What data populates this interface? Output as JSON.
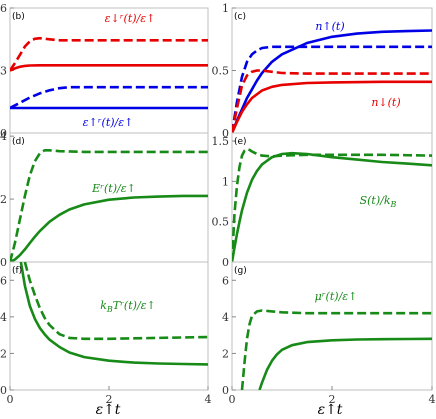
{
  "figure": {
    "xlabel": "ε↑t"
  },
  "chart_data": [
    {
      "type": "line",
      "panel_label": "(b)",
      "xlim": [
        0,
        4
      ],
      "ylim": [
        0,
        6
      ],
      "xticks": [],
      "yticks": [
        0,
        3,
        6
      ],
      "series": [
        {
          "color": "#e60000",
          "dash": true,
          "x": [
            0,
            0.1,
            0.2,
            0.3,
            0.4,
            0.5,
            0.6,
            0.8,
            1.0,
            1.5,
            2.0,
            3.0,
            4.0
          ],
          "y": [
            3.0,
            3.35,
            3.75,
            4.15,
            4.4,
            4.52,
            4.55,
            4.5,
            4.45,
            4.45,
            4.45,
            4.45,
            4.45
          ]
        },
        {
          "color": "#e60000",
          "dash": false,
          "x": [
            0,
            0.1,
            0.2,
            0.3,
            0.4,
            0.6,
            1.0,
            2.0,
            3.0,
            4.0
          ],
          "y": [
            3.0,
            3.1,
            3.18,
            3.22,
            3.24,
            3.25,
            3.25,
            3.25,
            3.25,
            3.25
          ]
        },
        {
          "color": "#0000e6",
          "dash": true,
          "x": [
            0,
            0.2,
            0.4,
            0.6,
            0.8,
            1.0,
            1.2,
            1.5,
            2.0,
            3.0,
            4.0
          ],
          "y": [
            1.2,
            1.45,
            1.7,
            1.9,
            2.05,
            2.15,
            2.2,
            2.2,
            2.2,
            2.2,
            2.2
          ]
        },
        {
          "color": "#0000e6",
          "dash": false,
          "x": [
            0,
            0.3,
            0.6,
            1.0,
            2.0,
            3.0,
            4.0
          ],
          "y": [
            1.2,
            1.2,
            1.2,
            1.2,
            1.2,
            1.2,
            1.2
          ]
        }
      ],
      "annotations": [
        {
          "text": "ε↓ʳ(t)/ε↑",
          "x": 2.0,
          "y": 5.2,
          "color": "#e60000"
        },
        {
          "text": "ε↑ʳ(t)/ε↑",
          "x": 1.8,
          "y": 0.3,
          "color": "#0000e6"
        }
      ]
    },
    {
      "type": "line",
      "panel_label": "(c)",
      "xlim": [
        0,
        4
      ],
      "ylim": [
        0,
        1
      ],
      "xticks": [],
      "yticks": [
        0,
        0.5,
        1
      ],
      "series": [
        {
          "color": "#0000e6",
          "dash": false,
          "x": [
            0,
            0.1,
            0.2,
            0.3,
            0.4,
            0.5,
            0.6,
            0.8,
            1.0,
            1.5,
            2.0,
            2.5,
            3.0,
            3.5,
            4.0
          ],
          "y": [
            0,
            0.1,
            0.19,
            0.28,
            0.35,
            0.42,
            0.48,
            0.57,
            0.63,
            0.72,
            0.77,
            0.795,
            0.81,
            0.815,
            0.82
          ]
        },
        {
          "color": "#0000e6",
          "dash": true,
          "x": [
            0,
            0.1,
            0.2,
            0.3,
            0.4,
            0.5,
            0.6,
            0.8,
            1.0,
            1.5,
            2.0,
            3.0,
            4.0
          ],
          "y": [
            0,
            0.25,
            0.45,
            0.57,
            0.63,
            0.66,
            0.68,
            0.69,
            0.69,
            0.69,
            0.69,
            0.69,
            0.69
          ]
        },
        {
          "color": "#e60000",
          "dash": true,
          "x": [
            0,
            0.1,
            0.2,
            0.3,
            0.4,
            0.5,
            0.6,
            0.8,
            1.0,
            1.5,
            2.0,
            3.0,
            4.0
          ],
          "y": [
            0,
            0.2,
            0.38,
            0.46,
            0.49,
            0.5,
            0.5,
            0.49,
            0.48,
            0.475,
            0.475,
            0.475,
            0.475
          ]
        },
        {
          "color": "#e60000",
          "dash": false,
          "x": [
            0,
            0.1,
            0.2,
            0.3,
            0.4,
            0.6,
            0.8,
            1.0,
            1.5,
            2.0,
            3.0,
            4.0
          ],
          "y": [
            0,
            0.09,
            0.17,
            0.23,
            0.28,
            0.34,
            0.37,
            0.385,
            0.4,
            0.405,
            0.41,
            0.41
          ]
        }
      ],
      "annotations": [
        {
          "text": "n↑(t)",
          "x": 2.3,
          "y": 0.87,
          "color": "#0000e6"
        },
        {
          "text": "n↓(t)",
          "x": 3.4,
          "y": 0.22,
          "color": "#e60000"
        }
      ]
    },
    {
      "type": "line",
      "panel_label": "(d)",
      "xlim": [
        0,
        4
      ],
      "ylim": [
        0,
        4.1
      ],
      "xticks": [],
      "yticks": [
        0,
        2,
        4
      ],
      "series": [
        {
          "color": "#178a17",
          "dash": true,
          "x": [
            0,
            0.1,
            0.2,
            0.3,
            0.4,
            0.5,
            0.6,
            0.7,
            0.8,
            1.0,
            1.5,
            2.0,
            3.0,
            4.0
          ],
          "y": [
            0,
            0.6,
            1.35,
            2.1,
            2.75,
            3.2,
            3.45,
            3.55,
            3.55,
            3.52,
            3.5,
            3.5,
            3.5,
            3.5
          ]
        },
        {
          "color": "#178a17",
          "dash": false,
          "x": [
            0,
            0.1,
            0.2,
            0.3,
            0.4,
            0.5,
            0.6,
            0.8,
            1.0,
            1.2,
            1.5,
            2.0,
            2.5,
            3.0,
            3.5,
            4.0
          ],
          "y": [
            0,
            0.08,
            0.22,
            0.4,
            0.6,
            0.8,
            0.98,
            1.28,
            1.5,
            1.67,
            1.83,
            1.98,
            2.05,
            2.08,
            2.1,
            2.1
          ]
        }
      ],
      "annotations": [
        {
          "text": "Eʳ(t)/ε↑",
          "x": 1.65,
          "y": 2.45,
          "color": "#178a17"
        }
      ]
    },
    {
      "type": "line",
      "panel_label": "(e)",
      "xlim": [
        0,
        4
      ],
      "ylim": [
        0,
        1.6
      ],
      "xticks": [],
      "yticks": [
        0,
        0.5,
        1,
        1.5
      ],
      "series": [
        {
          "color": "#178a17",
          "dash": true,
          "x": [
            0,
            0.05,
            0.1,
            0.15,
            0.2,
            0.25,
            0.3,
            0.35,
            0.4,
            0.5,
            0.6,
            0.8,
            1.0,
            1.5,
            2.0,
            3.0,
            4.0
          ],
          "y": [
            0,
            0.6,
            0.95,
            1.18,
            1.32,
            1.38,
            1.4,
            1.39,
            1.37,
            1.34,
            1.32,
            1.31,
            1.32,
            1.33,
            1.33,
            1.33,
            1.32
          ]
        },
        {
          "color": "#178a17",
          "dash": false,
          "x": [
            0,
            0.05,
            0.1,
            0.15,
            0.2,
            0.3,
            0.4,
            0.5,
            0.6,
            0.8,
            1.0,
            1.2,
            1.5,
            2.0,
            2.5,
            3.0,
            3.5,
            4.0
          ],
          "y": [
            0,
            0.18,
            0.35,
            0.5,
            0.64,
            0.86,
            1.02,
            1.13,
            1.21,
            1.3,
            1.34,
            1.35,
            1.34,
            1.3,
            1.27,
            1.24,
            1.22,
            1.2
          ]
        }
      ],
      "annotations": [
        {
          "text": "S(t)/k",
          "sub": "B",
          "x": 2.7,
          "y": 0.78,
          "color": "#178a17"
        }
      ]
    },
    {
      "type": "line",
      "panel_label": "(f)",
      "xlim": [
        0,
        4
      ],
      "ylim": [
        0,
        7
      ],
      "xticks": [
        0,
        2,
        4
      ],
      "yticks": [
        0,
        2,
        4,
        6
      ],
      "series": [
        {
          "color": "#178a17",
          "dash": true,
          "x": [
            0.3,
            0.4,
            0.5,
            0.6,
            0.7,
            0.8,
            1.0,
            1.2,
            1.5,
            2.0,
            3.0,
            4.0
          ],
          "y": [
            7,
            6.0,
            5.2,
            4.5,
            3.95,
            3.55,
            3.05,
            2.85,
            2.8,
            2.8,
            2.85,
            2.9
          ]
        },
        {
          "color": "#178a17",
          "dash": false,
          "x": [
            0.22,
            0.3,
            0.4,
            0.5,
            0.6,
            0.7,
            0.8,
            1.0,
            1.2,
            1.5,
            2.0,
            2.5,
            3.0,
            3.5,
            4.0
          ],
          "y": [
            7,
            5.7,
            4.6,
            3.9,
            3.4,
            3.05,
            2.75,
            2.35,
            2.05,
            1.8,
            1.6,
            1.5,
            1.45,
            1.42,
            1.4
          ]
        }
      ],
      "annotations": [
        {
          "text": "k",
          "sub": "B",
          "text2": "Tʳ(t)/ε↑",
          "x": 0.9,
          "y": 4.3,
          "color": "#178a17"
        }
      ]
    },
    {
      "type": "line",
      "panel_label": "(g)",
      "xlim": [
        0,
        4
      ],
      "ylim": [
        0,
        7
      ],
      "xticks": [
        0,
        2,
        4
      ],
      "yticks": [
        0,
        2,
        4,
        6
      ],
      "series": [
        {
          "color": "#178a17",
          "dash": true,
          "x": [
            0.2,
            0.25,
            0.3,
            0.35,
            0.4,
            0.5,
            0.6,
            0.8,
            1.0,
            1.5,
            2.0,
            3.0,
            4.0
          ],
          "y": [
            0,
            1.5,
            2.8,
            3.6,
            4.05,
            4.3,
            4.35,
            4.3,
            4.25,
            4.2,
            4.2,
            4.2,
            4.2
          ]
        },
        {
          "color": "#178a17",
          "dash": false,
          "x": [
            0.55,
            0.6,
            0.7,
            0.8,
            0.9,
            1.0,
            1.2,
            1.5,
            2.0,
            2.5,
            3.0,
            3.5,
            4.0
          ],
          "y": [
            0,
            0.4,
            1.1,
            1.6,
            1.95,
            2.2,
            2.45,
            2.62,
            2.72,
            2.76,
            2.78,
            2.79,
            2.8
          ]
        }
      ],
      "annotations": [
        {
          "text": "μʳ(t)/ε↑",
          "x": 1.55,
          "y": 5.2,
          "color": "#178a17"
        }
      ]
    }
  ]
}
